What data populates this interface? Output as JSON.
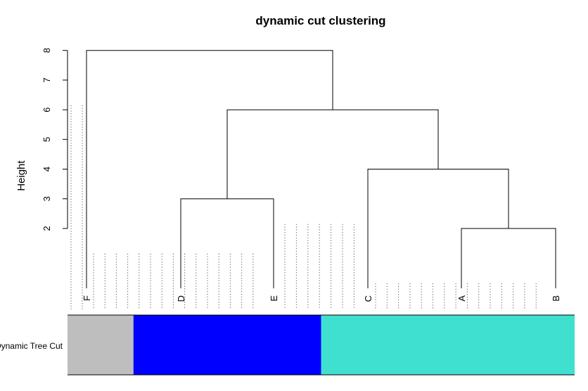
{
  "chart_data": {
    "type": "dendrogram",
    "title": "dynamic cut clustering",
    "ylabel": "Height",
    "yticks": [
      2,
      3,
      4,
      5,
      6,
      7,
      8
    ],
    "ylim": [
      0,
      8
    ],
    "leaves": [
      "F",
      "D",
      "E",
      "C",
      "A",
      "B"
    ],
    "merges": [
      {
        "left": "A",
        "right": "B",
        "height": 2
      },
      {
        "left": "D",
        "right": "E",
        "height": 3
      },
      {
        "left": "C",
        "right": "A,B",
        "height": 4
      },
      {
        "left": "D,E",
        "right": "C,A,B",
        "height": 6
      },
      {
        "left": "F",
        "right": "D,E,C,A,B",
        "height": 8
      }
    ],
    "dotted_guide_heights": [
      6.15,
      1.15,
      2.15,
      0.15
    ],
    "color_bar": {
      "label": "Dynamic Tree Cut",
      "segments": [
        {
          "color": "#bebebe",
          "fraction": 0.13
        },
        {
          "color": "#0000ff",
          "fraction": 0.37
        },
        {
          "color": "#40e0d0",
          "fraction": 0.5
        }
      ]
    }
  }
}
